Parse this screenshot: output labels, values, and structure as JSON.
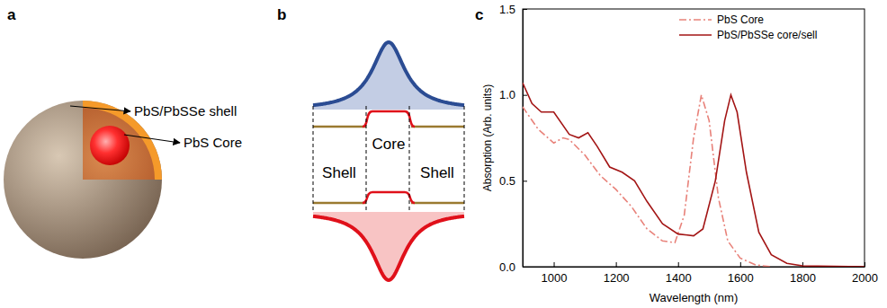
{
  "panel_labels": [
    "a",
    "b",
    "c"
  ],
  "diagram": {
    "shell_label": "PbS/PbSSe shell",
    "core_label": "PbS Core",
    "band_core": "Core",
    "band_shells": [
      "Shell",
      "Shell"
    ]
  },
  "chart_data": {
    "type": "line",
    "x_label": "Wavelength (nm)",
    "y_label": "Absorption (Arb. units)",
    "xlim": [
      900,
      2000
    ],
    "xticks": [
      1000,
      1200,
      1400,
      1600,
      1800,
      2000
    ],
    "ylim": [
      0,
      1.5
    ],
    "yticks": [
      {
        "value": 0,
        "label": "0.0"
      },
      {
        "value": 0.5,
        "label": "0.5"
      },
      {
        "value": 1.0,
        "label": "1.0"
      },
      {
        "value": 1.5,
        "label": "1.5"
      }
    ],
    "grid": false,
    "legend": "upper right",
    "series": [
      {
        "name": "PbS Core",
        "color": "#e8827a",
        "line_style": "dashdot",
        "x": [
          900,
          950,
          1000,
          1030,
          1050,
          1100,
          1150,
          1200,
          1250,
          1300,
          1350,
          1390,
          1420,
          1450,
          1475,
          1500,
          1530,
          1560,
          1600,
          1650,
          1700
        ],
        "values": [
          0.93,
          0.8,
          0.72,
          0.75,
          0.74,
          0.65,
          0.53,
          0.45,
          0.35,
          0.22,
          0.15,
          0.14,
          0.3,
          0.75,
          1.0,
          0.85,
          0.4,
          0.15,
          0.05,
          0.01,
          0.0
        ]
      },
      {
        "name": "PbS/PbSSe core/sell",
        "color": "#a31515",
        "line_style": "solid",
        "x": [
          900,
          930,
          960,
          1000,
          1050,
          1080,
          1110,
          1140,
          1180,
          1220,
          1260,
          1300,
          1350,
          1400,
          1450,
          1480,
          1520,
          1550,
          1570,
          1590,
          1620,
          1660,
          1700,
          1750,
          1800,
          2000
        ],
        "values": [
          1.07,
          0.95,
          0.9,
          0.9,
          0.77,
          0.75,
          0.78,
          0.7,
          0.58,
          0.55,
          0.5,
          0.38,
          0.25,
          0.19,
          0.18,
          0.22,
          0.5,
          0.85,
          1.0,
          0.9,
          0.55,
          0.2,
          0.07,
          0.02,
          0.005,
          0.0
        ]
      }
    ]
  }
}
